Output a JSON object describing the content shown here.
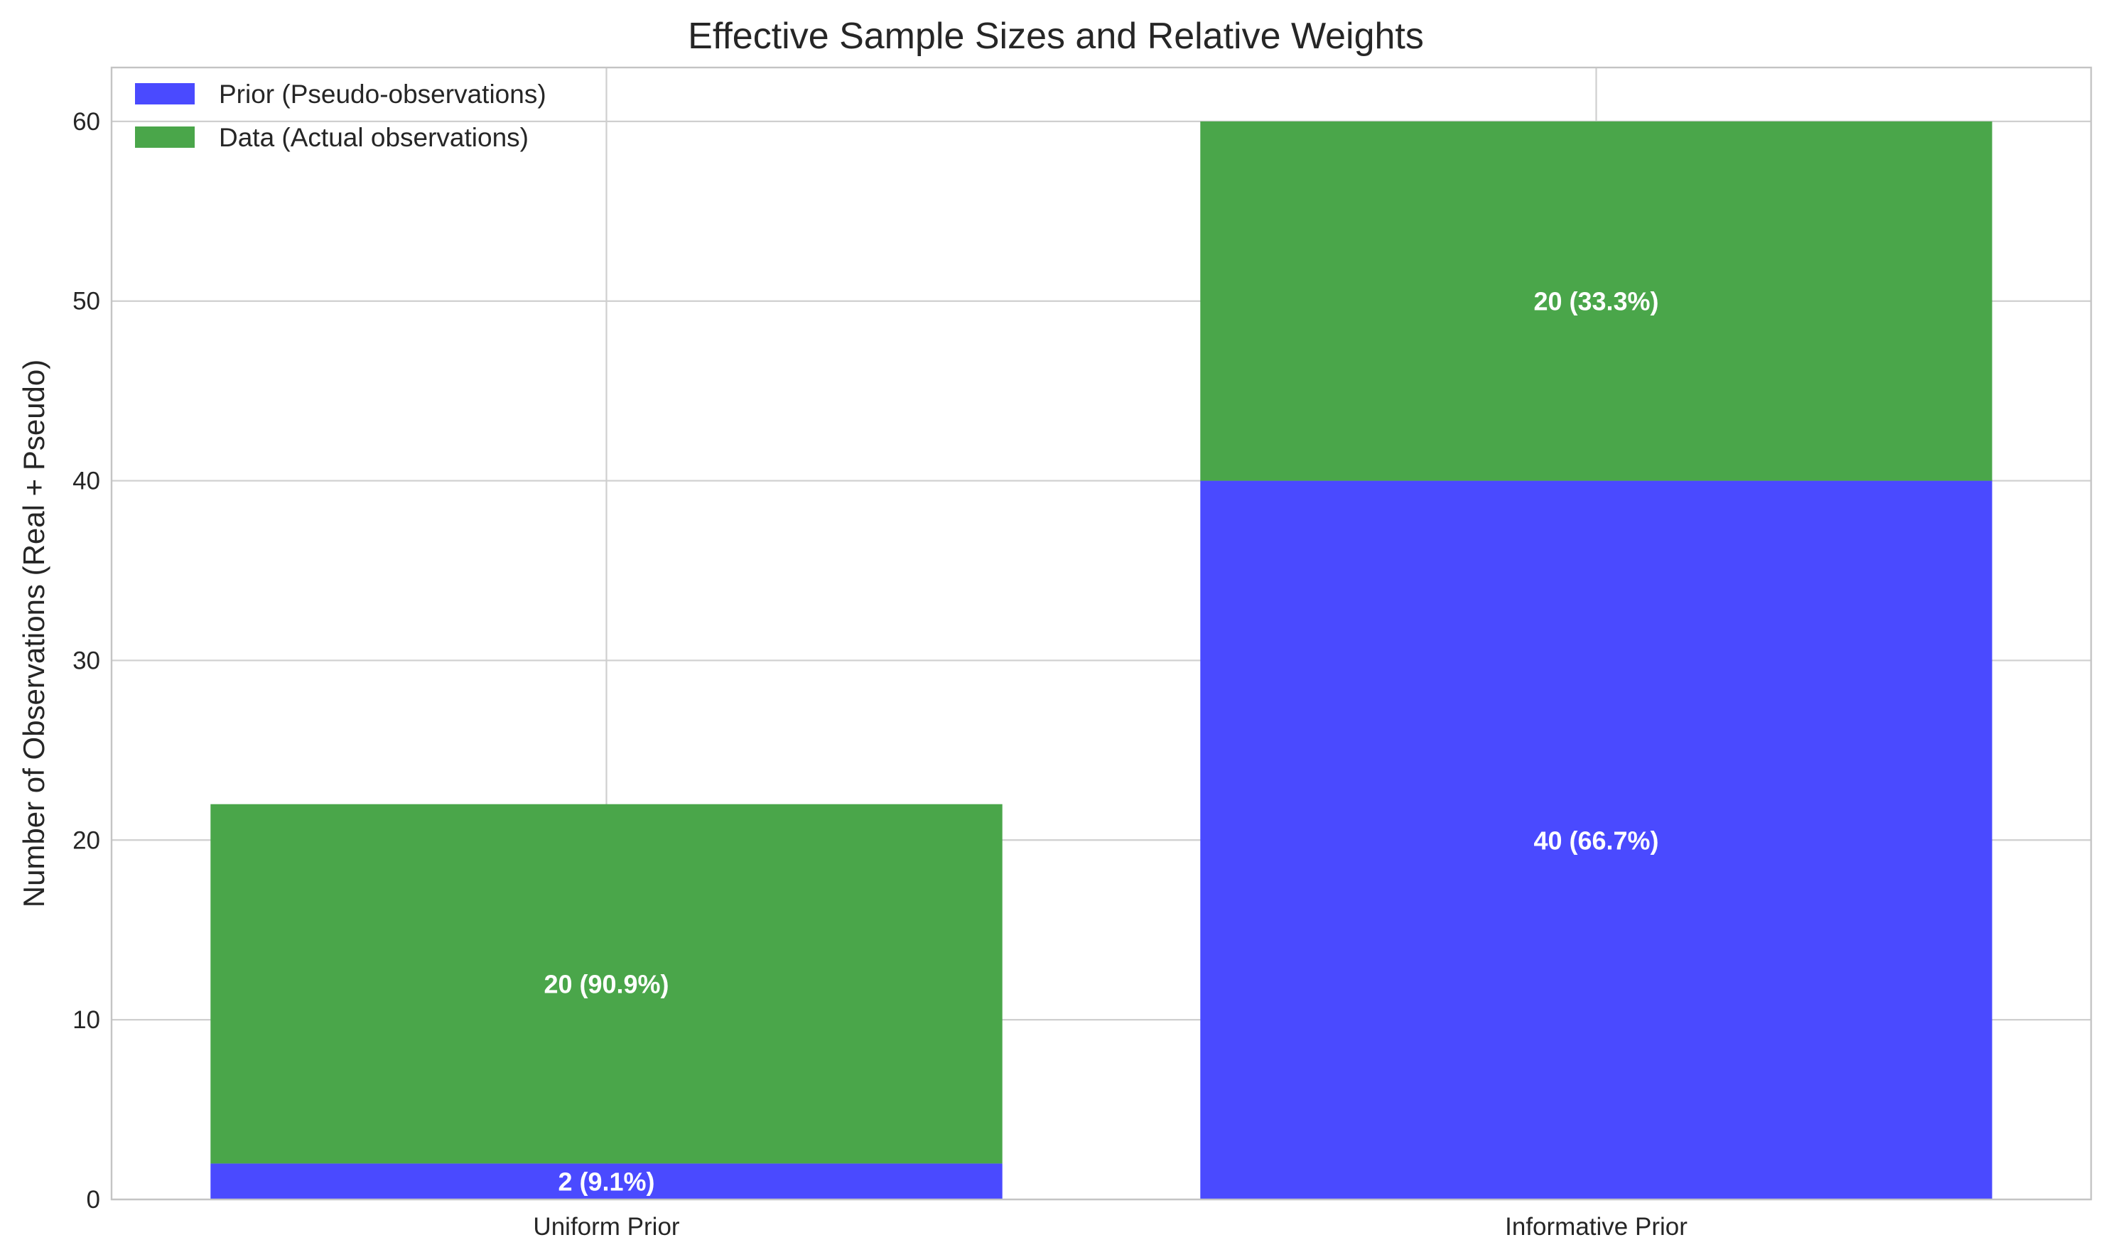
{
  "chart_data": {
    "type": "bar",
    "stacked": true,
    "title": "Effective Sample Sizes and Relative Weights",
    "xlabel": "",
    "ylabel": "Number of Observations (Real + Pseudo)",
    "categories": [
      "Uniform Prior",
      "Informative Prior"
    ],
    "series": [
      {
        "name": "Prior (Pseudo-observations)",
        "values": [
          2,
          40
        ],
        "labels": [
          "2 (9.1%)",
          "40 (66.7%)"
        ],
        "color": "#4a4aff"
      },
      {
        "name": "Data (Actual observations)",
        "values": [
          20,
          20
        ],
        "labels": [
          "20 (90.9%)",
          "20 (33.3%)"
        ],
        "color": "#4aa64a"
      }
    ],
    "ylim": [
      0,
      63
    ],
    "yticks": [
      0,
      10,
      20,
      30,
      40,
      50,
      60
    ],
    "grid": true,
    "legend_position": "top-left"
  }
}
